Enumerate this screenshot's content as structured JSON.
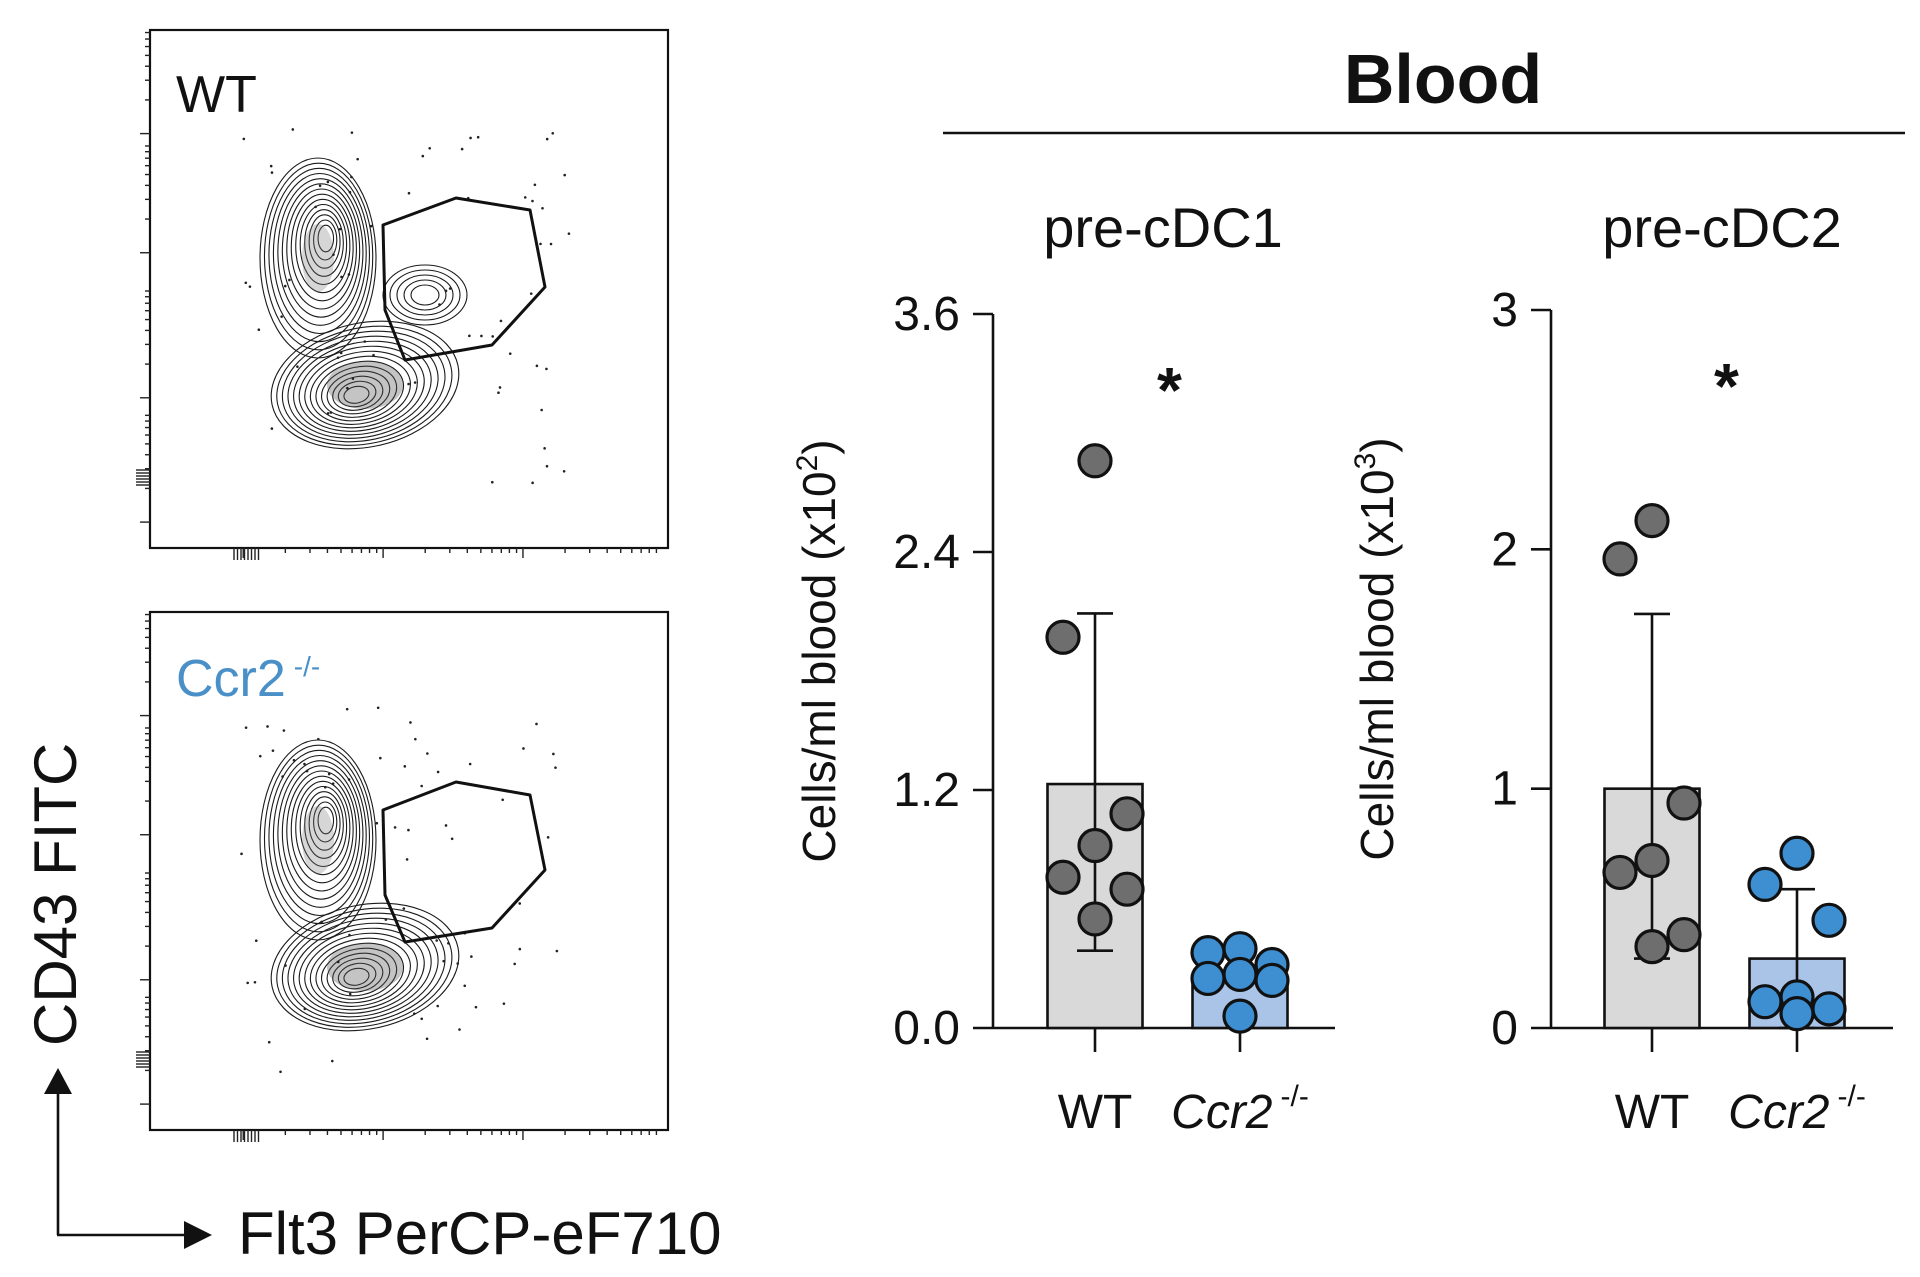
{
  "flow": {
    "panels": [
      {
        "label": "WT",
        "label_color": "#111111",
        "sup": ""
      },
      {
        "label": "Ccr2",
        "label_color": "#4a90c8",
        "sup": "-/-"
      }
    ],
    "y_axis_label": "CD43 FITC",
    "x_axis_label": "Flt3 PerCP-eF710"
  },
  "header": {
    "title": "Blood"
  },
  "chart_data": [
    {
      "type": "bar",
      "title": "pre-cDC1",
      "ylabel": "Cells/ml blood (x10",
      "ylabel_sup": "2",
      "ylabel_end": ")",
      "ylim": [
        0,
        3.6
      ],
      "yticks": [
        "0.0",
        "1.2",
        "2.4",
        "3.6"
      ],
      "ytick_values": [
        0,
        1.2,
        2.4,
        3.6
      ],
      "categories": [
        {
          "name": "WT",
          "italic": false,
          "sup": ""
        },
        {
          "name": "Ccr2",
          "italic": true,
          "sup": "-/-"
        }
      ],
      "series": [
        {
          "group": "WT",
          "mean": 1.23,
          "sd_low": 0.39,
          "sd_high": 2.09,
          "points": [
            2.86,
            1.97,
            1.08,
            0.92,
            0.76,
            0.7,
            0.55
          ],
          "bar_color": "#d9d9d9",
          "point_color": "#6e6e6e"
        },
        {
          "group": "Ccr2",
          "mean": 0.25,
          "sd_low": 0.25,
          "sd_high": 0.25,
          "points": [
            0.4,
            0.38,
            0.32,
            0.27,
            0.25,
            0.24,
            0.06
          ],
          "bar_color": "#a9c4e6",
          "point_color": "#3d8fd1"
        }
      ],
      "significance": "*"
    },
    {
      "type": "bar",
      "title": "pre-cDC2",
      "ylabel": "Cells/ml blood (x10",
      "ylabel_sup": "3",
      "ylabel_end": ")",
      "ylim": [
        0,
        3
      ],
      "yticks": [
        "0",
        "1",
        "2",
        "3"
      ],
      "ytick_values": [
        0,
        1,
        2,
        3
      ],
      "categories": [
        {
          "name": "WT",
          "italic": false,
          "sup": ""
        },
        {
          "name": "Ccr2",
          "italic": true,
          "sup": "-/-"
        }
      ],
      "series": [
        {
          "group": "WT",
          "mean": 1.0,
          "sd_low": 0.29,
          "sd_high": 1.73,
          "points": [
            2.12,
            1.96,
            0.94,
            0.7,
            0.65,
            0.39,
            0.34
          ],
          "bar_color": "#d9d9d9",
          "point_color": "#6e6e6e"
        },
        {
          "group": "Ccr2",
          "mean": 0.29,
          "sd_low": 0.0,
          "sd_high": 0.58,
          "points": [
            0.73,
            0.6,
            0.45,
            0.13,
            0.11,
            0.08,
            0.06
          ],
          "bar_color": "#a9c4e6",
          "point_color": "#3d8fd1"
        }
      ],
      "significance": "*"
    }
  ]
}
